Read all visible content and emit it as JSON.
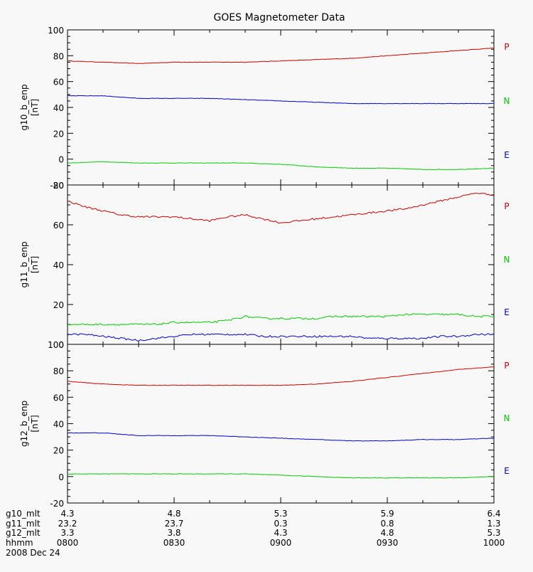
{
  "title": "GOES Magnetometer Data",
  "colors": {
    "P": "#cc0000",
    "N": "#00cc00",
    "E": "#0000cc",
    "axis": "#000000"
  },
  "x_ticks": {
    "hhmm": [
      "0800",
      "0830",
      "0900",
      "0930",
      "1000"
    ],
    "g10_mlt": [
      "4.3",
      "4.8",
      "5.3",
      "5.9",
      "6.4"
    ],
    "g11_mlt": [
      "23.2",
      "23.7",
      "0.3",
      "0.8",
      "1.3"
    ],
    "g12_mlt": [
      "3.3",
      "3.8",
      "4.3",
      "4.8",
      "5.3"
    ]
  },
  "x_row_labels": [
    "g10_mlt",
    "g11_mlt",
    "g12_mlt",
    "hhmm"
  ],
  "date": "2008 Dec 24",
  "chart_data": [
    {
      "type": "line",
      "panel": "g10",
      "ylabel": "g10_b_enp",
      "yunit": "[nT]",
      "ylim": [
        -20,
        100
      ],
      "yticks": [
        "-20",
        "0",
        "20",
        "40",
        "60",
        "80",
        "100"
      ],
      "x": [
        "0800",
        "0810",
        "0820",
        "0830",
        "0840",
        "0850",
        "0900",
        "0910",
        "0920",
        "0930",
        "0940",
        "0950",
        "1000"
      ],
      "series": [
        {
          "name": "P",
          "color": "#cc0000",
          "values": [
            76,
            75,
            74,
            75,
            75,
            75,
            76,
            77,
            78,
            80,
            82,
            84,
            86
          ]
        },
        {
          "name": "N",
          "color": "#00cc00",
          "values": [
            -3,
            -2,
            -3,
            -3,
            -3,
            -3,
            -4,
            -6,
            -7,
            -7,
            -8,
            -8,
            -7
          ]
        },
        {
          "name": "E",
          "color": "#0000cc",
          "values": [
            49,
            49,
            47,
            47,
            47,
            46,
            45,
            44,
            43,
            43,
            43,
            43,
            43
          ]
        }
      ]
    },
    {
      "type": "line",
      "panel": "g11",
      "ylabel": "g11_b_enp",
      "yunit": "[nT]",
      "ylim": [
        0,
        80
      ],
      "yticks": [
        "0",
        "20",
        "40",
        "60",
        "80"
      ],
      "x": [
        "0800",
        "0805",
        "0810",
        "0815",
        "0820",
        "0825",
        "0830",
        "0835",
        "0840",
        "0845",
        "0850",
        "0855",
        "0900",
        "0905",
        "0910",
        "0915",
        "0920",
        "0925",
        "0930",
        "0935",
        "0940",
        "0945",
        "0950",
        "0955",
        "1000"
      ],
      "series": [
        {
          "name": "P",
          "color": "#cc0000",
          "values": [
            72,
            69,
            67,
            65,
            64,
            64,
            64,
            63,
            62,
            64,
            65,
            63,
            61,
            62,
            63,
            64,
            65,
            66,
            67,
            68,
            70,
            72,
            74,
            76,
            75
          ]
        },
        {
          "name": "N",
          "color": "#00cc00",
          "values": [
            10,
            10,
            10,
            10,
            10,
            10,
            11,
            11,
            11,
            12,
            14,
            13,
            13,
            13,
            13,
            14,
            14,
            14,
            14,
            15,
            15,
            15,
            15,
            14,
            14
          ]
        },
        {
          "name": "E",
          "color": "#0000cc",
          "values": [
            5,
            5,
            4,
            3,
            2,
            3,
            4,
            5,
            5,
            5,
            5,
            4,
            4,
            4,
            4,
            4,
            4,
            3,
            3,
            3,
            3,
            4,
            4,
            5,
            5
          ]
        }
      ]
    },
    {
      "type": "line",
      "panel": "g12",
      "ylabel": "g12_b_enp",
      "yunit": "[nT]",
      "ylim": [
        -20,
        100
      ],
      "yticks": [
        "-20",
        "0",
        "20",
        "40",
        "60",
        "80",
        "100"
      ],
      "x": [
        "0800",
        "0810",
        "0820",
        "0830",
        "0840",
        "0850",
        "0900",
        "0910",
        "0920",
        "0930",
        "0940",
        "0950",
        "1000"
      ],
      "series": [
        {
          "name": "P",
          "color": "#cc0000",
          "values": [
            72,
            70,
            69,
            69,
            69,
            69,
            69,
            70,
            72,
            75,
            78,
            81,
            83
          ]
        },
        {
          "name": "N",
          "color": "#00cc00",
          "values": [
            2,
            2,
            2,
            2,
            2,
            2,
            1,
            0,
            -1,
            -1,
            -1,
            -1,
            0
          ]
        },
        {
          "name": "E",
          "color": "#0000cc",
          "values": [
            33,
            33,
            31,
            31,
            31,
            30,
            29,
            28,
            27,
            27,
            28,
            28,
            29
          ]
        }
      ]
    }
  ]
}
